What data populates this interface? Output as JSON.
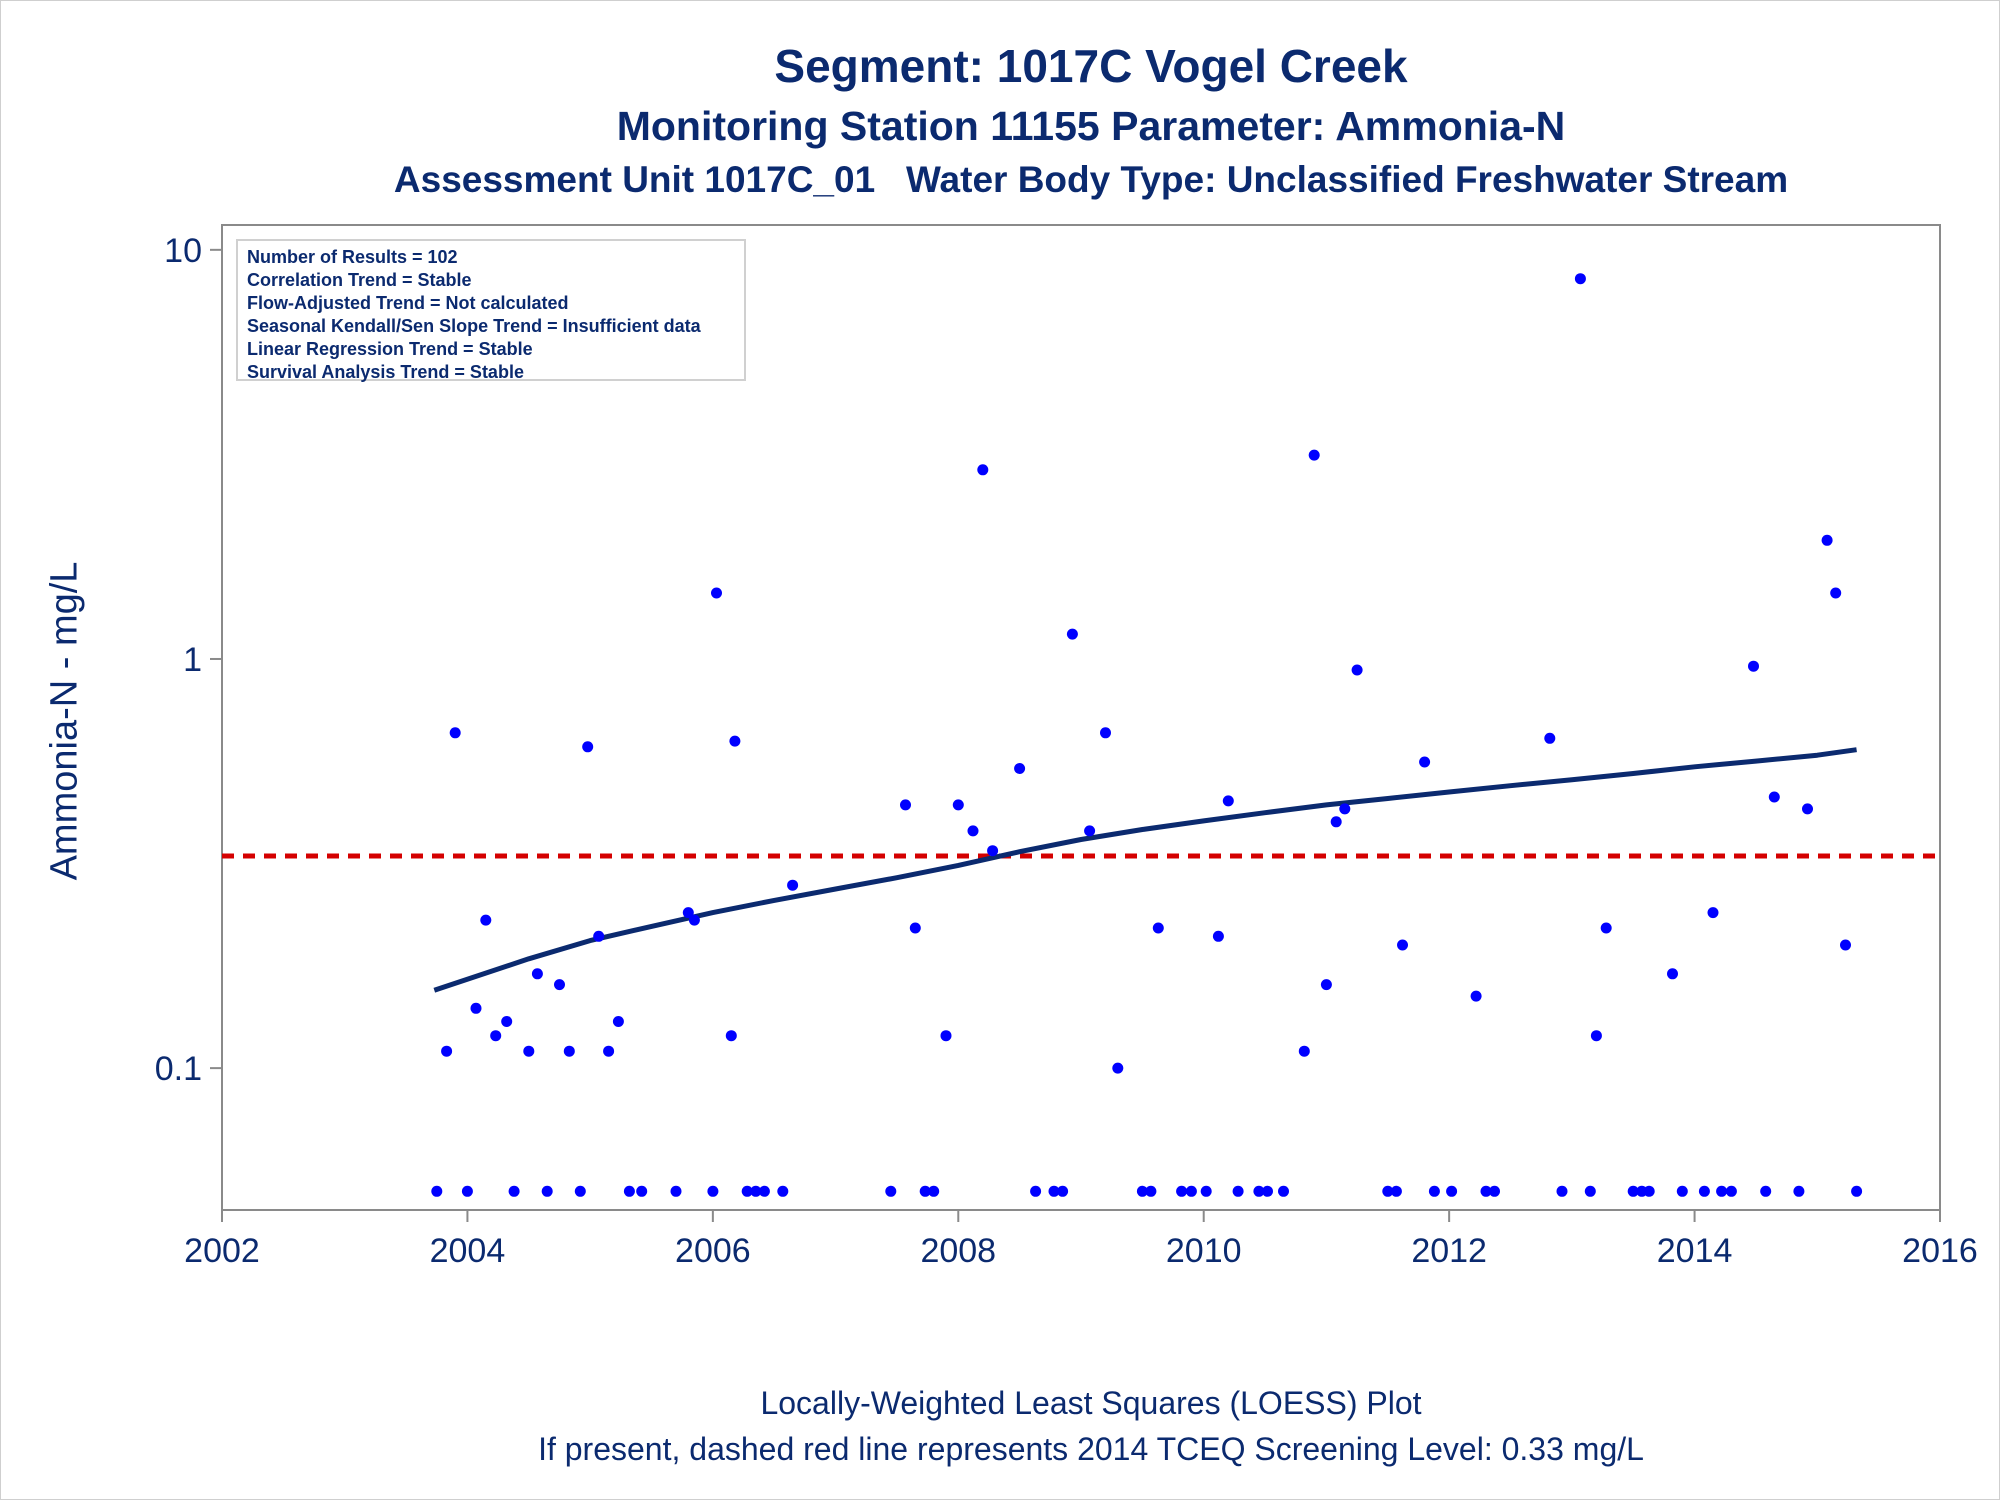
{
  "header": {
    "title": "Segment: 1017C  Vogel Creek",
    "subtitle": "Monitoring Station 11155 Parameter: Ammonia-N",
    "subtitle2": "Assessment Unit 1017C_01   Water Body Type: Unclassified Freshwater Stream"
  },
  "legend": {
    "lines": [
      "Number of Results = 102",
      "Correlation Trend = Stable",
      "Flow-Adjusted Trend = Not calculated",
      "Seasonal Kendall/Sen Slope Trend = Insufficient data",
      "Linear Regression Trend = Stable",
      "Survival Analysis Trend = Stable"
    ]
  },
  "footer": {
    "line1": "Locally-Weighted Least Squares (LOESS) Plot",
    "line2": "If present, dashed red line represents 2014 TCEQ Screening Level: 0.33 mg/L"
  },
  "colors": {
    "points": "#0000ff",
    "loess": "#0b2a6f",
    "screening": "#d40000",
    "axis": "#8a8a8a",
    "text": "#0b2a6f"
  },
  "chart_data": {
    "type": "scatter",
    "ylabel": "Ammonia-N - mg/L",
    "y_scale": "log",
    "xlim": [
      2002,
      2016
    ],
    "ylim": [
      0.045,
      11.5
    ],
    "x_ticks": [
      2002,
      2004,
      2006,
      2008,
      2010,
      2012,
      2014,
      2016
    ],
    "y_ticks": [
      0.1,
      1,
      10
    ],
    "y_tick_labels": [
      "0.1",
      "1",
      "10"
    ],
    "screening_level": 0.33,
    "points": [
      [
        2003.75,
        0.05
      ],
      [
        2003.83,
        0.11
      ],
      [
        2003.9,
        0.66
      ],
      [
        2004.0,
        0.05
      ],
      [
        2004.07,
        0.14
      ],
      [
        2004.15,
        0.23
      ],
      [
        2004.23,
        0.12
      ],
      [
        2004.32,
        0.13
      ],
      [
        2004.38,
        0.05
      ],
      [
        2004.5,
        0.11
      ],
      [
        2004.57,
        0.17
      ],
      [
        2004.65,
        0.05
      ],
      [
        2004.75,
        0.16
      ],
      [
        2004.83,
        0.11
      ],
      [
        2004.92,
        0.05
      ],
      [
        2004.98,
        0.61
      ],
      [
        2005.07,
        0.21
      ],
      [
        2005.15,
        0.11
      ],
      [
        2005.23,
        0.13
      ],
      [
        2005.32,
        0.05
      ],
      [
        2005.42,
        0.05
      ],
      [
        2005.7,
        0.05
      ],
      [
        2005.8,
        0.24
      ],
      [
        2005.85,
        0.23
      ],
      [
        2006.0,
        0.05
      ],
      [
        2006.03,
        1.45
      ],
      [
        2006.15,
        0.12
      ],
      [
        2006.18,
        0.63
      ],
      [
        2006.28,
        0.05
      ],
      [
        2006.35,
        0.05
      ],
      [
        2006.42,
        0.05
      ],
      [
        2006.57,
        0.05
      ],
      [
        2006.65,
        0.28
      ],
      [
        2007.45,
        0.05
      ],
      [
        2007.57,
        0.44
      ],
      [
        2007.65,
        0.22
      ],
      [
        2007.73,
        0.05
      ],
      [
        2007.8,
        0.05
      ],
      [
        2007.9,
        0.12
      ],
      [
        2008.0,
        0.44
      ],
      [
        2008.12,
        0.38
      ],
      [
        2008.2,
        2.9
      ],
      [
        2008.28,
        0.34
      ],
      [
        2008.5,
        0.54
      ],
      [
        2008.63,
        0.05
      ],
      [
        2008.78,
        0.05
      ],
      [
        2008.85,
        0.05
      ],
      [
        2008.93,
        1.15
      ],
      [
        2009.07,
        0.38
      ],
      [
        2009.2,
        0.66
      ],
      [
        2009.3,
        0.1
      ],
      [
        2009.5,
        0.05
      ],
      [
        2009.57,
        0.05
      ],
      [
        2009.63,
        0.22
      ],
      [
        2009.82,
        0.05
      ],
      [
        2009.9,
        0.05
      ],
      [
        2010.02,
        0.05
      ],
      [
        2010.12,
        0.21
      ],
      [
        2010.2,
        0.45
      ],
      [
        2010.28,
        0.05
      ],
      [
        2010.45,
        0.05
      ],
      [
        2010.52,
        0.05
      ],
      [
        2010.65,
        0.05
      ],
      [
        2010.82,
        0.11
      ],
      [
        2010.9,
        3.15
      ],
      [
        2011.0,
        0.16
      ],
      [
        2011.08,
        0.4
      ],
      [
        2011.15,
        0.43
      ],
      [
        2011.25,
        0.94
      ],
      [
        2011.5,
        0.05
      ],
      [
        2011.57,
        0.05
      ],
      [
        2011.62,
        0.2
      ],
      [
        2011.8,
        0.56
      ],
      [
        2011.88,
        0.05
      ],
      [
        2012.02,
        0.05
      ],
      [
        2012.22,
        0.15
      ],
      [
        2012.3,
        0.05
      ],
      [
        2012.37,
        0.05
      ],
      [
        2012.82,
        0.64
      ],
      [
        2012.92,
        0.05
      ],
      [
        2013.07,
        8.5
      ],
      [
        2013.15,
        0.05
      ],
      [
        2013.2,
        0.12
      ],
      [
        2013.28,
        0.22
      ],
      [
        2013.5,
        0.05
      ],
      [
        2013.57,
        0.05
      ],
      [
        2013.63,
        0.05
      ],
      [
        2013.82,
        0.17
      ],
      [
        2013.9,
        0.05
      ],
      [
        2014.08,
        0.05
      ],
      [
        2014.15,
        0.24
      ],
      [
        2014.22,
        0.05
      ],
      [
        2014.3,
        0.05
      ],
      [
        2014.48,
        0.96
      ],
      [
        2014.58,
        0.05
      ],
      [
        2014.65,
        0.46
      ],
      [
        2014.85,
        0.05
      ],
      [
        2014.92,
        0.43
      ],
      [
        2015.08,
        1.95
      ],
      [
        2015.15,
        1.45
      ],
      [
        2015.23,
        0.2
      ],
      [
        2015.32,
        0.05
      ]
    ],
    "loess": {
      "x": [
        2003.73,
        2004.5,
        2005.0,
        2005.5,
        2006.0,
        2006.5,
        2007.0,
        2007.5,
        2008.0,
        2008.5,
        2009.0,
        2009.5,
        2010.0,
        2010.5,
        2011.0,
        2011.5,
        2012.0,
        2012.5,
        2013.0,
        2013.5,
        2014.0,
        2014.5,
        2015.0,
        2015.32
      ],
      "y": [
        0.155,
        0.185,
        0.205,
        0.222,
        0.24,
        0.257,
        0.274,
        0.292,
        0.313,
        0.338,
        0.362,
        0.383,
        0.402,
        0.421,
        0.44,
        0.456,
        0.473,
        0.49,
        0.507,
        0.525,
        0.545,
        0.563,
        0.582,
        0.6
      ]
    }
  }
}
